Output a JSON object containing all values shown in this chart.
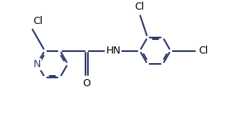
{
  "bg_color": "#ffffff",
  "bond_color": "#323d6e",
  "text_color": "#000000",
  "line_width": 1.5,
  "dbo": 0.06,
  "figsize": [
    3.14,
    1.54
  ],
  "dpi": 100,
  "xlim": [
    -1.0,
    6.5
  ],
  "ylim": [
    -2.2,
    2.2
  ]
}
